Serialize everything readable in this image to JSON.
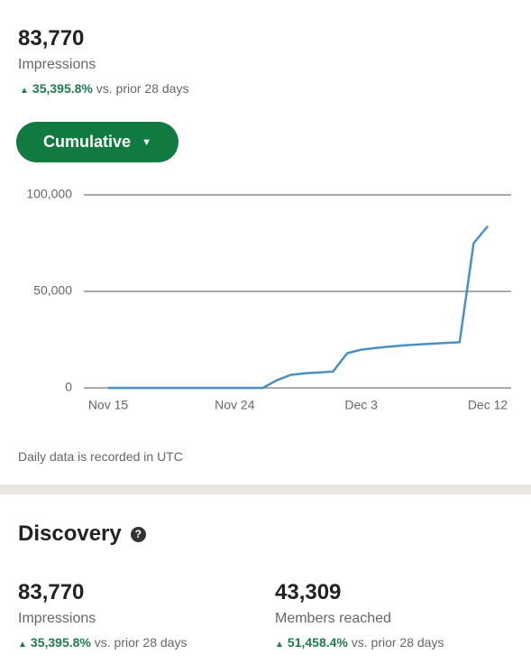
{
  "header": {
    "value": "83,770",
    "label": "Impressions",
    "change": "35,395.8%",
    "change_suffix": "vs. prior 28 days"
  },
  "button": "Cumulative",
  "chart_data": {
    "type": "line",
    "categories": [
      "Nov 15",
      null,
      null,
      null,
      null,
      null,
      null,
      null,
      null,
      "Nov 24",
      null,
      null,
      null,
      null,
      null,
      null,
      null,
      null,
      "Dec 3",
      null,
      null,
      null,
      null,
      null,
      null,
      null,
      null,
      "Dec 12"
    ],
    "values": [
      0,
      0,
      0,
      0,
      0,
      0,
      0,
      0,
      0,
      0,
      0,
      0,
      4000,
      6800,
      7600,
      8000,
      8500,
      18000,
      19800,
      20700,
      21400,
      22000,
      22500,
      22900,
      23300,
      23700,
      75000,
      83770
    ],
    "color": "#4a90c2",
    "ylim": [
      0,
      100000
    ],
    "yticks": [
      0,
      {
        "value": 50000,
        "label": "50,000"
      },
      {
        "value": 100000,
        "label": "100,000"
      }
    ],
    "grid": true
  },
  "note": "Daily data is recorded in UTC",
  "discovery": {
    "title": "Discovery",
    "stats": [
      {
        "value": "83,770",
        "label": "Impressions",
        "change": "35,395.8%",
        "change_suffix": "vs. prior 28 days"
      },
      {
        "value": "43,309",
        "label": "Members reached",
        "change": "51,458.4%",
        "change_suffix": "vs. prior 28 days"
      }
    ]
  }
}
